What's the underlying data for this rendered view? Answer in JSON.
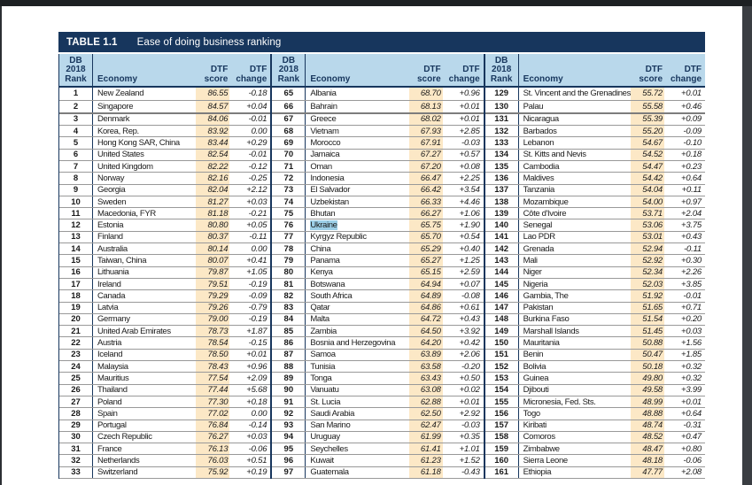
{
  "colors": {
    "accent_navy": "#17365d",
    "header_blue": "#b9d8eb",
    "score_column_highlight": "#fce8c6",
    "search_highlight_blue": "#9ccfe7",
    "viewer_edge_dark": "#3a3d42"
  },
  "table": {
    "title_label": "TABLE 1.1",
    "title_text": "Ease of doing business ranking",
    "highlighted_economy": "Ukraine",
    "columns": {
      "rank_l1": "DB",
      "rank_l2": "2018",
      "rank_l3": "Rank",
      "economy": "Economy",
      "score_l1": "DTF",
      "score_l2": "score",
      "change_l1": "DTF",
      "change_l2": "change"
    },
    "groups": [
      {
        "rows": [
          {
            "rank": "1",
            "economy": "New Zealand",
            "score": "86.55",
            "change": "-0.18"
          },
          {
            "rank": "2",
            "economy": "Singapore",
            "score": "84.57",
            "change": "+0.04"
          },
          {
            "rank": "3",
            "economy": "Denmark",
            "score": "84.06",
            "change": "-0.01"
          },
          {
            "rank": "4",
            "economy": "Korea, Rep.",
            "score": "83.92",
            "change": "0.00"
          },
          {
            "rank": "5",
            "economy": "Hong Kong SAR, China",
            "score": "83.44",
            "change": "+0.29"
          },
          {
            "rank": "6",
            "economy": "United States",
            "score": "82.54",
            "change": "-0.01"
          },
          {
            "rank": "7",
            "economy": "United Kingdom",
            "score": "82.22",
            "change": "-0.12"
          },
          {
            "rank": "8",
            "economy": "Norway",
            "score": "82.16",
            "change": "-0.25"
          },
          {
            "rank": "9",
            "economy": "Georgia",
            "score": "82.04",
            "change": "+2.12"
          },
          {
            "rank": "10",
            "economy": "Sweden",
            "score": "81.27",
            "change": "+0.03"
          },
          {
            "rank": "11",
            "economy": "Macedonia, FYR",
            "score": "81.18",
            "change": "-0.21"
          },
          {
            "rank": "12",
            "economy": "Estonia",
            "score": "80.80",
            "change": "+0.05"
          },
          {
            "rank": "13",
            "economy": "Finland",
            "score": "80.37",
            "change": "-0.11"
          },
          {
            "rank": "14",
            "economy": "Australia",
            "score": "80.14",
            "change": "0.00"
          },
          {
            "rank": "15",
            "economy": "Taiwan, China",
            "score": "80.07",
            "change": "+0.41"
          },
          {
            "rank": "16",
            "economy": "Lithuania",
            "score": "79.87",
            "change": "+1.05"
          },
          {
            "rank": "17",
            "economy": "Ireland",
            "score": "79.51",
            "change": "-0.19"
          },
          {
            "rank": "18",
            "economy": "Canada",
            "score": "79.29",
            "change": "-0.09"
          },
          {
            "rank": "19",
            "economy": "Latvia",
            "score": "79.26",
            "change": "-0.79"
          },
          {
            "rank": "20",
            "economy": "Germany",
            "score": "79.00",
            "change": "-0.19"
          },
          {
            "rank": "21",
            "economy": "United Arab Emirates",
            "score": "78.73",
            "change": "+1.87"
          },
          {
            "rank": "22",
            "economy": "Austria",
            "score": "78.54",
            "change": "-0.15"
          },
          {
            "rank": "23",
            "economy": "Iceland",
            "score": "78.50",
            "change": "+0.01"
          },
          {
            "rank": "24",
            "economy": "Malaysia",
            "score": "78.43",
            "change": "+0.96"
          },
          {
            "rank": "25",
            "economy": "Mauritius",
            "score": "77.54",
            "change": "+2.09"
          },
          {
            "rank": "26",
            "economy": "Thailand",
            "score": "77.44",
            "change": "+5.68"
          },
          {
            "rank": "27",
            "economy": "Poland",
            "score": "77.30",
            "change": "+0.18"
          },
          {
            "rank": "28",
            "economy": "Spain",
            "score": "77.02",
            "change": "0.00"
          },
          {
            "rank": "29",
            "economy": "Portugal",
            "score": "76.84",
            "change": "-0.14"
          },
          {
            "rank": "30",
            "economy": "Czech Republic",
            "score": "76.27",
            "change": "+0.03"
          },
          {
            "rank": "31",
            "economy": "France",
            "score": "76.13",
            "change": "-0.06"
          },
          {
            "rank": "32",
            "economy": "Netherlands",
            "score": "76.03",
            "change": "+0.51"
          },
          {
            "rank": "33",
            "economy": "Switzerland",
            "score": "75.92",
            "change": "+0.19"
          }
        ]
      },
      {
        "rows": [
          {
            "rank": "65",
            "economy": "Albania",
            "score": "68.70",
            "change": "+0.96"
          },
          {
            "rank": "66",
            "economy": "Bahrain",
            "score": "68.13",
            "change": "+0.01"
          },
          {
            "rank": "67",
            "economy": "Greece",
            "score": "68.02",
            "change": "+0.01"
          },
          {
            "rank": "68",
            "economy": "Vietnam",
            "score": "67.93",
            "change": "+2.85"
          },
          {
            "rank": "69",
            "economy": "Morocco",
            "score": "67.91",
            "change": "-0.03"
          },
          {
            "rank": "70",
            "economy": "Jamaica",
            "score": "67.27",
            "change": "+0.57"
          },
          {
            "rank": "71",
            "economy": "Oman",
            "score": "67.20",
            "change": "+0.08"
          },
          {
            "rank": "72",
            "economy": "Indonesia",
            "score": "66.47",
            "change": "+2.25"
          },
          {
            "rank": "73",
            "economy": "El Salvador",
            "score": "66.42",
            "change": "+3.54"
          },
          {
            "rank": "74",
            "economy": "Uzbekistan",
            "score": "66.33",
            "change": "+4.46"
          },
          {
            "rank": "75",
            "economy": "Bhutan",
            "score": "66.27",
            "change": "+1.06"
          },
          {
            "rank": "76",
            "economy": "Ukraine",
            "score": "65.75",
            "change": "+1.90"
          },
          {
            "rank": "77",
            "economy": "Kyrgyz Republic",
            "score": "65.70",
            "change": "+0.54"
          },
          {
            "rank": "78",
            "economy": "China",
            "score": "65.29",
            "change": "+0.40"
          },
          {
            "rank": "79",
            "economy": "Panama",
            "score": "65.27",
            "change": "+1.25"
          },
          {
            "rank": "80",
            "economy": "Kenya",
            "score": "65.15",
            "change": "+2.59"
          },
          {
            "rank": "81",
            "economy": "Botswana",
            "score": "64.94",
            "change": "+0.07"
          },
          {
            "rank": "82",
            "economy": "South Africa",
            "score": "64.89",
            "change": "-0.08"
          },
          {
            "rank": "83",
            "economy": "Qatar",
            "score": "64.86",
            "change": "+0.61"
          },
          {
            "rank": "84",
            "economy": "Malta",
            "score": "64.72",
            "change": "+0.43"
          },
          {
            "rank": "85",
            "economy": "Zambia",
            "score": "64.50",
            "change": "+3.92"
          },
          {
            "rank": "86",
            "economy": "Bosnia and Herzegovina",
            "score": "64.20",
            "change": "+0.42"
          },
          {
            "rank": "87",
            "economy": "Samoa",
            "score": "63.89",
            "change": "+2.06"
          },
          {
            "rank": "88",
            "economy": "Tunisia",
            "score": "63.58",
            "change": "-0.20"
          },
          {
            "rank": "89",
            "economy": "Tonga",
            "score": "63.43",
            "change": "+0.50"
          },
          {
            "rank": "90",
            "economy": "Vanuatu",
            "score": "63.08",
            "change": "+0.02"
          },
          {
            "rank": "91",
            "economy": "St. Lucia",
            "score": "62.88",
            "change": "+0.01"
          },
          {
            "rank": "92",
            "economy": "Saudi Arabia",
            "score": "62.50",
            "change": "+2.92"
          },
          {
            "rank": "93",
            "economy": "San Marino",
            "score": "62.47",
            "change": "-0.03"
          },
          {
            "rank": "94",
            "economy": "Uruguay",
            "score": "61.99",
            "change": "+0.35"
          },
          {
            "rank": "95",
            "economy": "Seychelles",
            "score": "61.41",
            "change": "+1.01"
          },
          {
            "rank": "96",
            "economy": "Kuwait",
            "score": "61.23",
            "change": "+1.52"
          },
          {
            "rank": "97",
            "economy": "Guatemala",
            "score": "61.18",
            "change": "-0.43"
          }
        ]
      },
      {
        "rows": [
          {
            "rank": "129",
            "economy": "St. Vincent and the Grenadines",
            "score": "55.72",
            "change": "+0.01"
          },
          {
            "rank": "130",
            "economy": "Palau",
            "score": "55.58",
            "change": "+0.46"
          },
          {
            "rank": "131",
            "economy": "Nicaragua",
            "score": "55.39",
            "change": "+0.09"
          },
          {
            "rank": "132",
            "economy": "Barbados",
            "score": "55.20",
            "change": "-0.09"
          },
          {
            "rank": "133",
            "economy": "Lebanon",
            "score": "54.67",
            "change": "-0.10"
          },
          {
            "rank": "134",
            "economy": "St. Kitts and Nevis",
            "score": "54.52",
            "change": "+0.18"
          },
          {
            "rank": "135",
            "economy": "Cambodia",
            "score": "54.47",
            "change": "+0.23"
          },
          {
            "rank": "136",
            "economy": "Maldives",
            "score": "54.42",
            "change": "+0.64"
          },
          {
            "rank": "137",
            "economy": "Tanzania",
            "score": "54.04",
            "change": "+0.11"
          },
          {
            "rank": "138",
            "economy": "Mozambique",
            "score": "54.00",
            "change": "+0.97"
          },
          {
            "rank": "139",
            "economy": "Côte d'Ivoire",
            "score": "53.71",
            "change": "+2.04"
          },
          {
            "rank": "140",
            "economy": "Senegal",
            "score": "53.06",
            "change": "+3.75"
          },
          {
            "rank": "141",
            "economy": "Lao PDR",
            "score": "53.01",
            "change": "+0.43"
          },
          {
            "rank": "142",
            "economy": "Grenada",
            "score": "52.94",
            "change": "-0.11"
          },
          {
            "rank": "143",
            "economy": "Mali",
            "score": "52.92",
            "change": "+0.30"
          },
          {
            "rank": "144",
            "economy": "Niger",
            "score": "52.34",
            "change": "+2.26"
          },
          {
            "rank": "145",
            "economy": "Nigeria",
            "score": "52.03",
            "change": "+3.85"
          },
          {
            "rank": "146",
            "economy": "Gambia, The",
            "score": "51.92",
            "change": "-0.01"
          },
          {
            "rank": "147",
            "economy": "Pakistan",
            "score": "51.65",
            "change": "+0.71"
          },
          {
            "rank": "148",
            "economy": "Burkina Faso",
            "score": "51.54",
            "change": "+0.20"
          },
          {
            "rank": "149",
            "economy": "Marshall Islands",
            "score": "51.45",
            "change": "+0.03"
          },
          {
            "rank": "150",
            "economy": "Mauritania",
            "score": "50.88",
            "change": "+1.56"
          },
          {
            "rank": "151",
            "economy": "Benin",
            "score": "50.47",
            "change": "+1.85"
          },
          {
            "rank": "152",
            "economy": "Bolivia",
            "score": "50.18",
            "change": "+0.32"
          },
          {
            "rank": "153",
            "economy": "Guinea",
            "score": "49.80",
            "change": "+0.32"
          },
          {
            "rank": "154",
            "economy": "Djibouti",
            "score": "49.58",
            "change": "+3.99"
          },
          {
            "rank": "155",
            "economy": "Micronesia, Fed. Sts.",
            "score": "48.99",
            "change": "+0.01"
          },
          {
            "rank": "156",
            "economy": "Togo",
            "score": "48.88",
            "change": "+0.64"
          },
          {
            "rank": "157",
            "economy": "Kiribati",
            "score": "48.74",
            "change": "-0.31"
          },
          {
            "rank": "158",
            "economy": "Comoros",
            "score": "48.52",
            "change": "+0.47"
          },
          {
            "rank": "159",
            "economy": "Zimbabwe",
            "score": "48.47",
            "change": "+0.80"
          },
          {
            "rank": "160",
            "economy": "Sierra Leone",
            "score": "48.18",
            "change": "-0.06"
          },
          {
            "rank": "161",
            "economy": "Ethiopia",
            "score": "47.77",
            "change": "+2.08"
          }
        ]
      }
    ]
  }
}
